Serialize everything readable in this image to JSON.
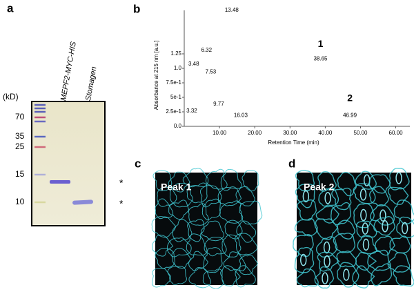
{
  "chart_data": {
    "type": "peaks",
    "y_label": "Absorbance at 215 nm [a.u.]",
    "x_label": "Retention Time (min)",
    "x": [
      3.32,
      3.48,
      6.32,
      7.53,
      9.77,
      13.48,
      16.03,
      38.65,
      46.99
    ],
    "values": [
      0.18,
      0.99,
      1.23,
      0.85,
      0.3,
      1.92,
      0.1,
      1.08,
      0.1
    ],
    "color": "#888888",
    "xlim": [
      0,
      64
    ],
    "ylim": [
      0,
      2.0
    ],
    "xticks": [
      {
        "value": 10,
        "label": "10.00"
      },
      {
        "value": 20,
        "label": "20.00"
      },
      {
        "value": 30,
        "label": "30.00"
      },
      {
        "value": 40,
        "label": "40.00"
      },
      {
        "value": 50,
        "label": "50.00"
      },
      {
        "value": 60,
        "label": "60.00"
      }
    ],
    "yticks": [
      {
        "value": 0,
        "label": "0.0"
      },
      {
        "value": 0.25,
        "label": "2.5e-1"
      },
      {
        "value": 0.5,
        "label": "5e-1"
      },
      {
        "value": 0.75,
        "label": "7.5e-1"
      },
      {
        "value": 1,
        "label": "1.0"
      },
      1.25
    ],
    "annotations": [
      "1",
      "2"
    ]
  },
  "panels": {
    "a": {
      "letter": "a",
      "unit": "(kD)",
      "markers": [
        "70",
        "35",
        "25",
        "15",
        "10"
      ],
      "lanes": [
        "MEPF2-MYC-HIS",
        "Stomagen"
      ],
      "stars": [
        "*",
        "*"
      ]
    },
    "b": {
      "letter": "b"
    },
    "c": {
      "letter": "c",
      "label": "Peak 1"
    },
    "d": {
      "letter": "d",
      "label": "Peak 2"
    }
  }
}
